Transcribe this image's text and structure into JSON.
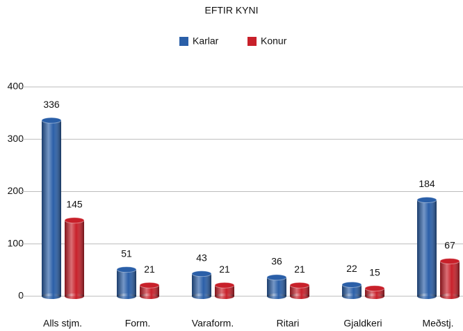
{
  "chart_data": {
    "type": "bar",
    "title": "EFTIR KYNI",
    "categories": [
      "Alls stjm.",
      "Form.",
      "Varaform.",
      "Ritari",
      "Gjaldkeri",
      "Meðstj."
    ],
    "series": [
      {
        "name": "Karlar",
        "color": "#2a5fa8",
        "values": [
          336,
          51,
          43,
          36,
          22,
          184
        ]
      },
      {
        "name": "Konur",
        "color": "#c8202a",
        "values": [
          145,
          21,
          21,
          21,
          15,
          67
        ]
      }
    ],
    "ylim": [
      0,
      400
    ],
    "yticks": [
      0,
      100,
      200,
      300,
      400
    ],
    "grid": true,
    "legend": "top"
  }
}
